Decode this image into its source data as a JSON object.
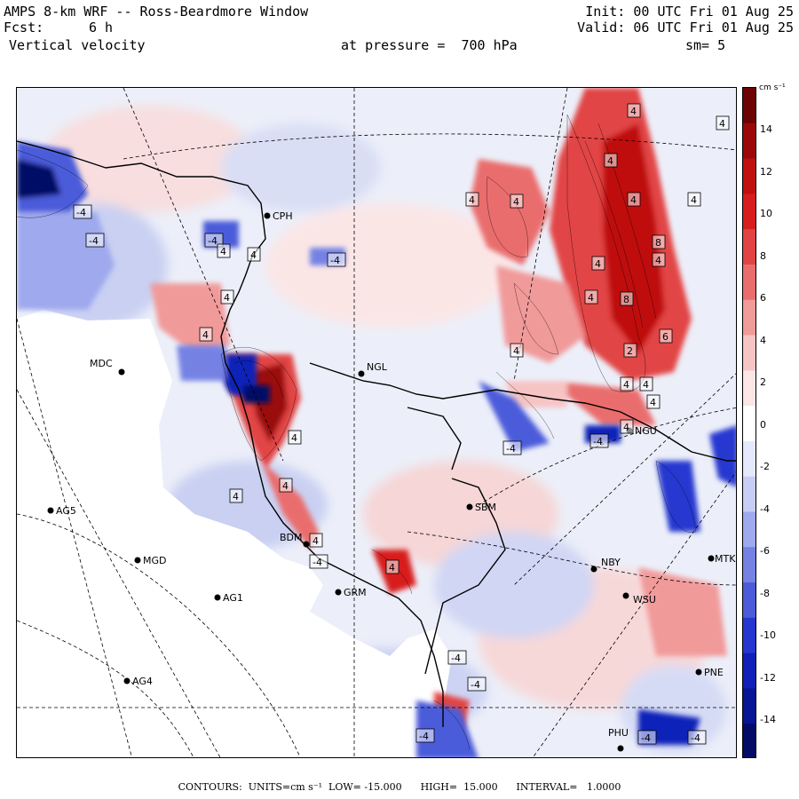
{
  "header": {
    "title": "AMPS 8-km WRF -- Ross-Beardmore Window",
    "forecast_label": "Fcst:",
    "forecast_value": "6 h",
    "variable": "Vertical velocity",
    "init": "Init: 00 UTC Fri 01 Aug 25",
    "valid": "Valid: 06 UTC Fri 01 Aug 25",
    "level": "at pressure =  700 hPa",
    "smoothing": "sm= 5"
  },
  "colorbar": {
    "unit": "cm s⁻¹",
    "ticks": [
      "14",
      "12",
      "10",
      "8",
      "6",
      "4",
      "2",
      "0",
      "-2",
      "-4",
      "-6",
      "-8",
      "-10",
      "-12",
      "-14"
    ],
    "colors_pos": [
      "#fbe5e5",
      "#f7c4c4",
      "#f19a9a",
      "#ea6d6d",
      "#e24444",
      "#d81d1d",
      "#bf1010",
      "#9b0808",
      "#6d0303"
    ],
    "colors_neg": [
      "#e5e9fb",
      "#c7cef6",
      "#9fa9ee",
      "#7582e4",
      "#4c5bda",
      "#2637d0",
      "#1020b8",
      "#081595",
      "#030b66"
    ]
  },
  "stations": [
    {
      "id": "CPH"
    },
    {
      "id": "MDC"
    },
    {
      "id": "NGL"
    },
    {
      "id": "AG5"
    },
    {
      "id": "MGD"
    },
    {
      "id": "AG1"
    },
    {
      "id": "AG4"
    },
    {
      "id": "BDM"
    },
    {
      "id": "GRM"
    },
    {
      "id": "SBM"
    },
    {
      "id": "NBY"
    },
    {
      "id": "WSU"
    },
    {
      "id": "MTK"
    },
    {
      "id": "PNE"
    },
    {
      "id": "PHU"
    },
    {
      "id": "NGU"
    }
  ],
  "contour_labels": [
    "4",
    "-4",
    "8",
    "6",
    "2"
  ],
  "footer": "CONTOURS:  UNITS=cm s⁻¹  LOW= -15.000      HIGH=  15.000      INTERVAL=   1.0000"
}
